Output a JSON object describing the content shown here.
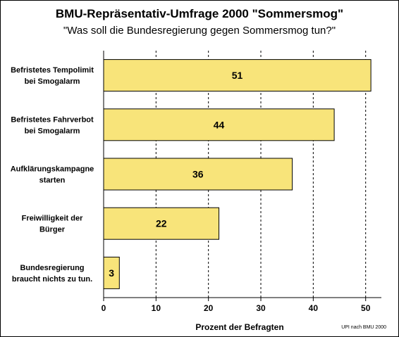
{
  "chart_data": {
    "type": "bar",
    "orientation": "horizontal",
    "title": "BMU-Repräsentativ-Umfrage 2000 \"Sommersmog\"",
    "subtitle": "\"Was soll die Bundesregierung gegen Sommersmog tun?\"",
    "categories": [
      [
        "Befristetes Tempolimit",
        "bei Smogalarm"
      ],
      [
        "Befristetes Fahrverbot",
        "bei Smogalarm"
      ],
      [
        "Aufklärungskampagne",
        "starten"
      ],
      [
        "Freiwilligkeit der",
        "Bürger"
      ],
      [
        "Bundesregierung",
        "braucht nichts zu tun."
      ]
    ],
    "values": [
      51,
      44,
      36,
      22,
      3
    ],
    "xlabel": "Prozent der Befragten",
    "xlim": [
      0,
      53
    ],
    "xticks": [
      0,
      10,
      20,
      30,
      40,
      50
    ],
    "grid": "vertical-dashed",
    "bar_color": "#F8E47A",
    "source_note": "UPI nach BMU 2000"
  }
}
